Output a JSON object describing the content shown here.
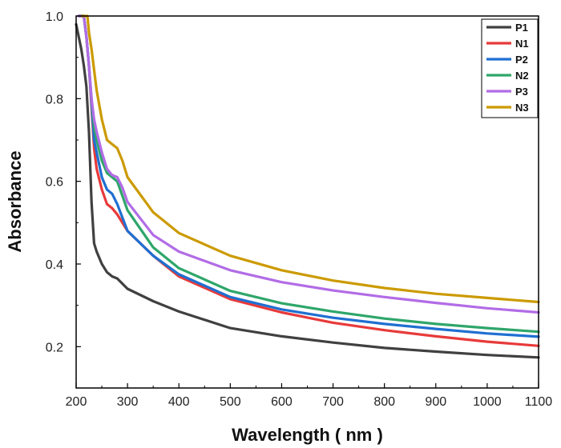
{
  "chart_data": {
    "type": "line",
    "title": "",
    "xlabel": "Wavelength ( nm )",
    "ylabel": "Absorbance",
    "xlim": [
      200,
      1100
    ],
    "ylim": [
      0.1,
      1.0
    ],
    "xticks": [
      200,
      300,
      400,
      500,
      600,
      700,
      800,
      900,
      1000,
      1100
    ],
    "yticks": [
      0.2,
      0.4,
      0.6,
      0.8,
      1.0
    ],
    "xtick_labels": [
      "200",
      "300",
      "400",
      "500",
      "600",
      "700",
      "800",
      "900",
      "1000",
      "1100"
    ],
    "ytick_labels": [
      "0.2",
      "0.4",
      "0.6",
      "0.8",
      "1.0"
    ],
    "grid": false,
    "legend_position": "top-right",
    "series": [
      {
        "name": "P1",
        "color": "#404040",
        "x": [
          200,
          205,
          210,
          215,
          220,
          225,
          230,
          235,
          240,
          250,
          260,
          270,
          280,
          300,
          350,
          400,
          500,
          600,
          700,
          800,
          900,
          1000,
          1100
        ],
        "y": [
          0.98,
          0.95,
          0.92,
          0.88,
          0.83,
          0.72,
          0.55,
          0.45,
          0.43,
          0.4,
          0.38,
          0.37,
          0.365,
          0.34,
          0.31,
          0.285,
          0.245,
          0.225,
          0.21,
          0.197,
          0.188,
          0.18,
          0.174
        ]
      },
      {
        "name": "N1",
        "color": "#e83a3a",
        "x": [
          205,
          210,
          215,
          220,
          225,
          230,
          235,
          240,
          250,
          260,
          270,
          280,
          300,
          350,
          400,
          500,
          600,
          700,
          800,
          900,
          1000,
          1100
        ],
        "y": [
          1.0,
          1.0,
          1.0,
          0.95,
          0.88,
          0.78,
          0.68,
          0.63,
          0.58,
          0.545,
          0.535,
          0.52,
          0.48,
          0.42,
          0.37,
          0.315,
          0.283,
          0.258,
          0.24,
          0.225,
          0.212,
          0.202
        ]
      },
      {
        "name": "P2",
        "color": "#1f6fd1",
        "x": [
          205,
          210,
          215,
          220,
          225,
          230,
          235,
          240,
          250,
          260,
          270,
          280,
          300,
          350,
          400,
          500,
          600,
          700,
          800,
          900,
          1000,
          1100
        ],
        "y": [
          1.0,
          1.0,
          1.0,
          0.95,
          0.88,
          0.79,
          0.7,
          0.67,
          0.61,
          0.58,
          0.57,
          0.545,
          0.48,
          0.42,
          0.375,
          0.32,
          0.29,
          0.27,
          0.255,
          0.243,
          0.232,
          0.224
        ]
      },
      {
        "name": "N2",
        "color": "#2ea66a",
        "x": [
          205,
          210,
          215,
          220,
          225,
          230,
          235,
          240,
          250,
          260,
          270,
          280,
          300,
          350,
          400,
          500,
          600,
          700,
          800,
          900,
          1000,
          1100
        ],
        "y": [
          1.0,
          1.0,
          1.0,
          0.95,
          0.88,
          0.8,
          0.73,
          0.7,
          0.65,
          0.62,
          0.61,
          0.6,
          0.53,
          0.44,
          0.39,
          0.335,
          0.305,
          0.285,
          0.268,
          0.255,
          0.245,
          0.236
        ]
      },
      {
        "name": "P3",
        "color": "#b26ce6",
        "x": [
          205,
          210,
          215,
          220,
          225,
          230,
          235,
          240,
          250,
          260,
          270,
          280,
          290,
          300,
          350,
          400,
          500,
          600,
          700,
          800,
          900,
          1000,
          1100
        ],
        "y": [
          1.0,
          1.0,
          1.0,
          0.95,
          0.88,
          0.8,
          0.75,
          0.72,
          0.67,
          0.63,
          0.615,
          0.61,
          0.585,
          0.55,
          0.47,
          0.43,
          0.385,
          0.356,
          0.336,
          0.32,
          0.306,
          0.293,
          0.283
        ]
      },
      {
        "name": "N3",
        "color": "#cc9a00",
        "x": [
          212,
          218,
          222,
          225,
          230,
          235,
          240,
          250,
          260,
          270,
          280,
          290,
          300,
          350,
          400,
          500,
          600,
          700,
          800,
          900,
          1000,
          1100
        ],
        "y": [
          1.0,
          1.0,
          1.0,
          0.96,
          0.92,
          0.87,
          0.82,
          0.75,
          0.7,
          0.69,
          0.68,
          0.65,
          0.61,
          0.525,
          0.475,
          0.42,
          0.385,
          0.36,
          0.342,
          0.328,
          0.318,
          0.308
        ]
      }
    ]
  }
}
